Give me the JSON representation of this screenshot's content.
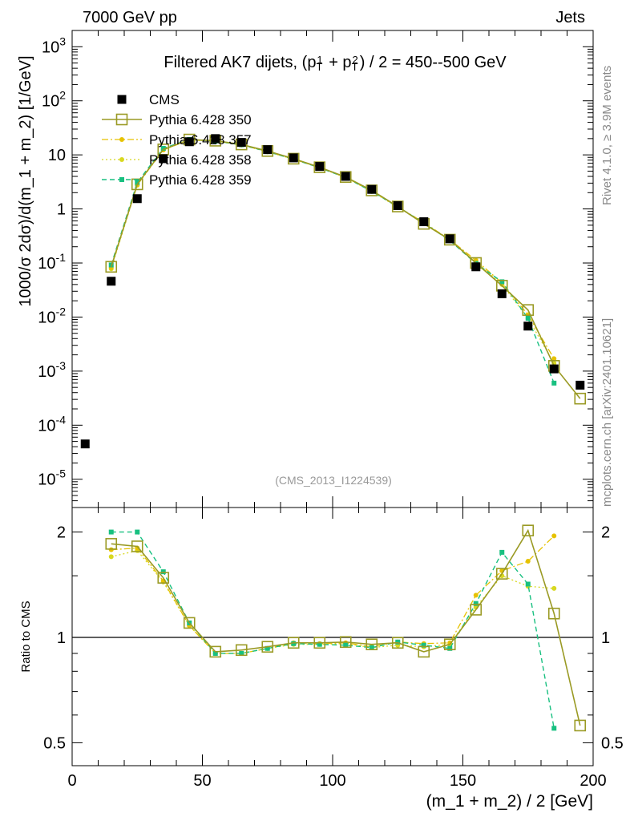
{
  "header": {
    "left": "7000 GeV pp",
    "right": "Jets"
  },
  "side_labels": {
    "rivet": "Rivet 4.1.0, ≥ 3.9M events",
    "mcplots": "mcplots.cern.ch [arXiv:2401.10621]"
  },
  "watermark": "(CMS_2013_I1224539)",
  "colors": {
    "cms": "#000000",
    "p350": "#9a9a24",
    "p357": "#e6c200",
    "p358": "#d8d820",
    "p359": "#18c080"
  },
  "chart_data": [
    {
      "type": "line",
      "title": "Filtered AK7 dijets, (p_T^1 + p_T^2) / 2 = 450--500 GeV",
      "ylabel": "1000/σ  2dσ)/d(m_1 + m_2) [1/GeV]",
      "xlim": [
        0,
        200
      ],
      "ylim": [
        3e-06,
        2000
      ],
      "yscale": "log",
      "legend_position": "top-left",
      "x": [
        5,
        15,
        25,
        35,
        45,
        55,
        65,
        75,
        85,
        95,
        105,
        115,
        125,
        135,
        145,
        155,
        165,
        175,
        185,
        195
      ],
      "yticks": [
        "10^{-5}",
        "10^{-4}",
        "10^{-3}",
        "10^{-2}",
        "10^{-1}",
        "1",
        "10",
        "10^{2}",
        "10^{3}"
      ],
      "series": [
        {
          "name": "CMS",
          "values": [
            4.5e-05,
            0.046,
            1.55,
            8.5,
            17.5,
            20.0,
            17.0,
            12.5,
            8.8,
            6.1,
            4.0,
            2.3,
            1.15,
            0.58,
            0.28,
            0.085,
            0.027,
            0.0068,
            0.0011,
            0.00055
          ]
        },
        {
          "name": "Pythia 6.428 350",
          "values": [
            null,
            0.085,
            2.85,
            12.6,
            19.2,
            18.3,
            15.6,
            11.8,
            8.5,
            5.9,
            3.9,
            2.2,
            1.11,
            0.53,
            0.27,
            0.1,
            0.038,
            0.0135,
            0.00125,
            0.00031
          ]
        },
        {
          "name": "Pythia 6.428 357",
          "values": [
            null,
            0.082,
            2.8,
            12.3,
            19.0,
            18.0,
            15.3,
            11.5,
            8.4,
            5.8,
            3.85,
            2.15,
            1.1,
            0.56,
            0.27,
            0.112,
            0.043,
            0.011,
            0.0017,
            null
          ]
        },
        {
          "name": "Pythia 6.428 358",
          "values": [
            null,
            0.078,
            2.75,
            12.4,
            18.9,
            17.9,
            15.2,
            11.4,
            8.3,
            5.8,
            3.8,
            2.1,
            1.08,
            0.54,
            0.265,
            0.105,
            0.04,
            0.0095,
            0.0014,
            null
          ]
        },
        {
          "name": "Pythia 6.428 359",
          "values": [
            null,
            0.092,
            3.1,
            13.2,
            19.3,
            18.0,
            15.4,
            11.5,
            8.3,
            5.8,
            3.8,
            2.12,
            1.1,
            0.55,
            0.26,
            0.098,
            0.045,
            0.0095,
            0.0006,
            null
          ]
        }
      ]
    },
    {
      "type": "line",
      "ylabel": "Ratio to CMS",
      "xlabel": "(m_1 + m_2) / 2 [GeV]",
      "xlim": [
        0,
        200
      ],
      "ylim": [
        0.43,
        2.35
      ],
      "yscale": "log",
      "reference_line": 1,
      "xticks": [
        "0",
        "50",
        "100",
        "150",
        "200"
      ],
      "yticks": [
        "0.5",
        "1",
        "2"
      ],
      "x": [
        15,
        25,
        35,
        45,
        55,
        65,
        75,
        85,
        95,
        105,
        115,
        125,
        135,
        145,
        155,
        165,
        175,
        185,
        195
      ],
      "series": [
        {
          "name": "Pythia 6.428 350",
          "values": [
            1.85,
            1.82,
            1.48,
            1.1,
            0.91,
            0.92,
            0.94,
            0.965,
            0.965,
            0.97,
            0.955,
            0.965,
            0.91,
            0.955,
            1.2,
            1.52,
            2.02,
            1.17,
            0.56
          ]
        },
        {
          "name": "Pythia 6.428 357",
          "values": [
            1.78,
            1.8,
            1.45,
            1.08,
            0.9,
            0.9,
            0.93,
            0.965,
            0.96,
            0.965,
            0.94,
            0.97,
            0.96,
            0.965,
            1.32,
            1.55,
            1.65,
            1.95,
            null
          ]
        },
        {
          "name": "Pythia 6.428 358",
          "values": [
            1.7,
            1.77,
            1.44,
            1.08,
            0.9,
            0.9,
            0.93,
            0.955,
            0.955,
            0.96,
            0.935,
            0.95,
            0.94,
            0.955,
            1.22,
            1.5,
            1.4,
            1.38,
            null
          ]
        },
        {
          "name": "Pythia 6.428 359",
          "values": [
            2.0,
            2.0,
            1.54,
            1.1,
            0.9,
            0.9,
            0.93,
            0.96,
            0.955,
            0.95,
            0.935,
            0.97,
            0.95,
            0.93,
            1.25,
            1.75,
            1.42,
            0.55,
            null
          ]
        }
      ]
    }
  ]
}
